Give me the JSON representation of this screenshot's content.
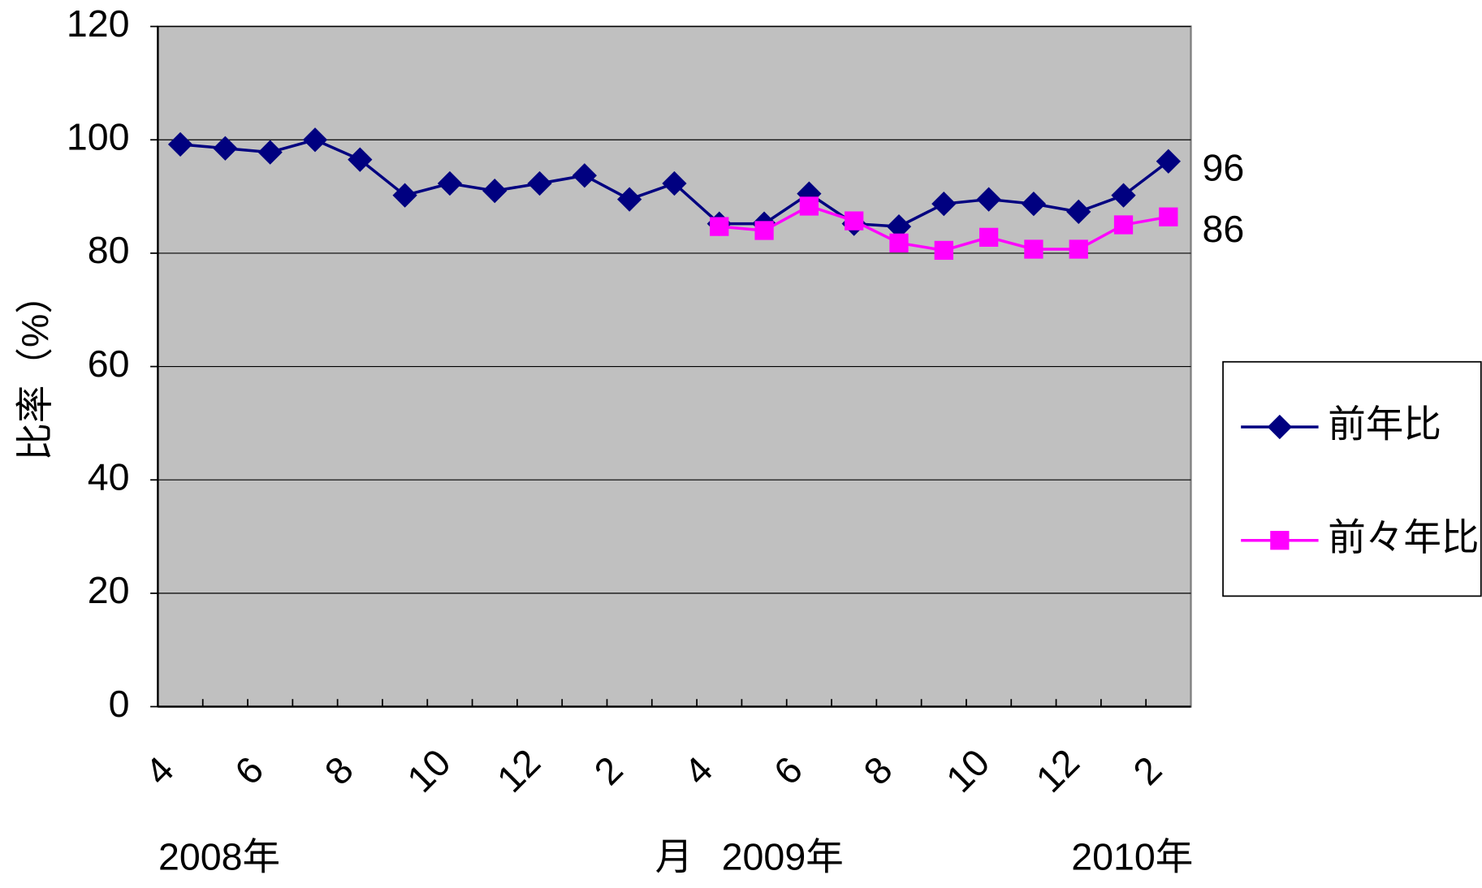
{
  "chart_data": {
    "type": "line",
    "ylabel": "比率（%）",
    "xlabel": "月",
    "x_groups": [
      "2008年",
      "2009年",
      "2010年"
    ],
    "categories": [
      "4",
      null,
      "6",
      null,
      "8",
      null,
      "10",
      null,
      "12",
      null,
      "2",
      null,
      "4",
      null,
      "6",
      null,
      "8",
      null,
      "10",
      null,
      "12",
      null,
      "2"
    ],
    "ylim": [
      0,
      120
    ],
    "yticks": [
      0,
      20,
      40,
      60,
      80,
      100,
      120
    ],
    "grid": true,
    "plot_background": "#c0c0c0",
    "legend_position": "right",
    "series": [
      {
        "name": "前年比",
        "color": "#000080",
        "marker": "diamond",
        "values": [
          99.2,
          98.5,
          97.8,
          100,
          96.5,
          90.2,
          92.3,
          91,
          92.3,
          93.7,
          89.5,
          92.3,
          85.2,
          85.2,
          90.5,
          85.2,
          84.7,
          88.7,
          89.5,
          88.7,
          87.3,
          90.2,
          96.2
        ],
        "value_labels": [
          null,
          null,
          null,
          null,
          null,
          null,
          null,
          null,
          null,
          null,
          null,
          null,
          null,
          null,
          null,
          null,
          null,
          null,
          null,
          null,
          null,
          null,
          "96"
        ],
        "label_color": "#000000"
      },
      {
        "name": "前々年比",
        "color": "#ff00ff",
        "marker": "square",
        "values": [
          null,
          null,
          null,
          null,
          null,
          null,
          null,
          null,
          null,
          null,
          null,
          null,
          84.7,
          84,
          88.3,
          85.7,
          81.8,
          80.5,
          82.8,
          80.7,
          80.7,
          85,
          86.4
        ],
        "value_labels": [
          null,
          null,
          null,
          null,
          null,
          null,
          null,
          null,
          null,
          null,
          null,
          null,
          null,
          null,
          null,
          null,
          null,
          null,
          null,
          null,
          null,
          null,
          "86"
        ],
        "label_color": "#ff00ff"
      }
    ]
  }
}
